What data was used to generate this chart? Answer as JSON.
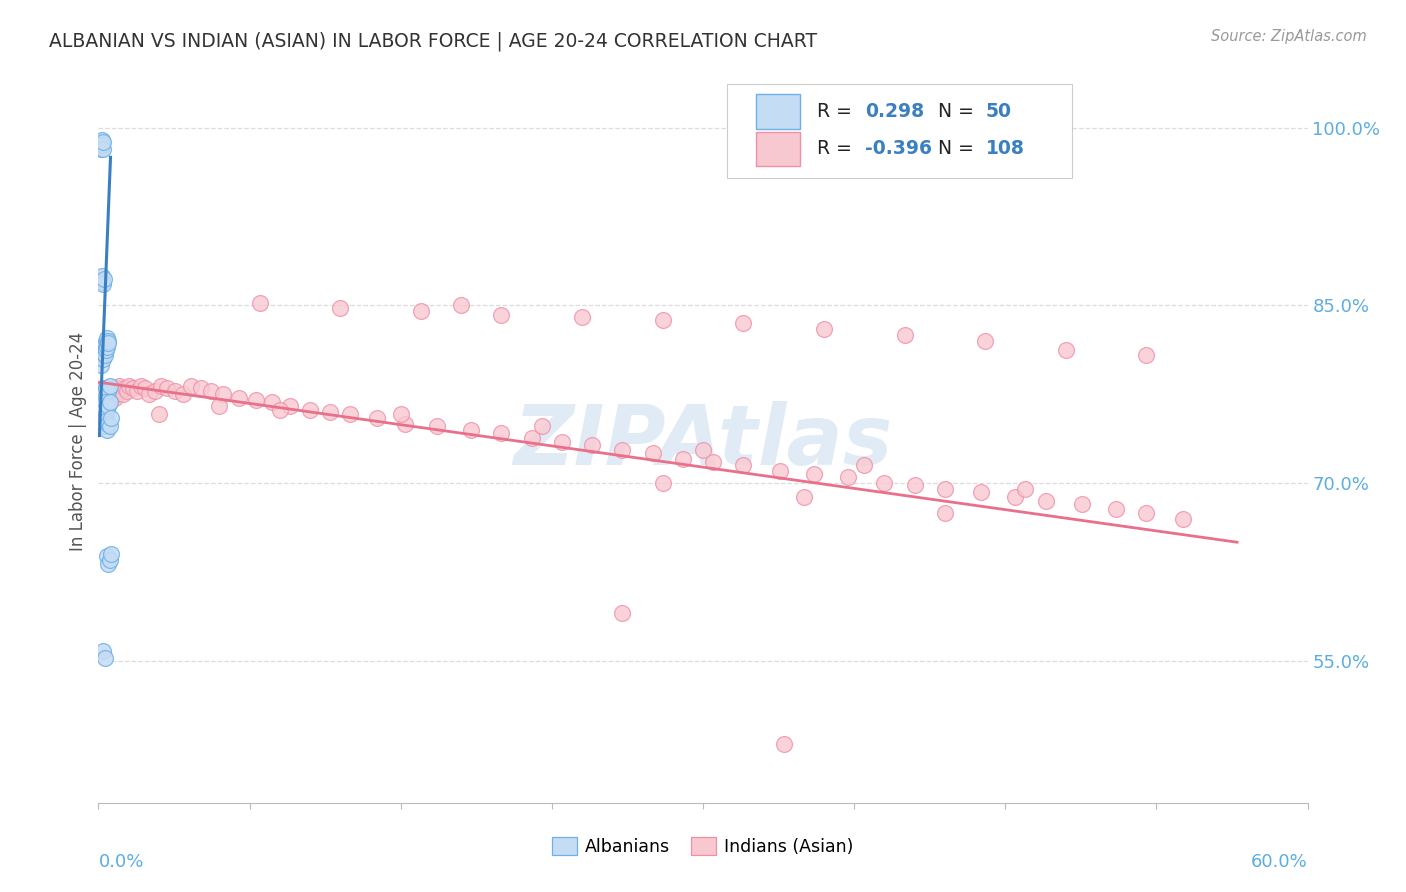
{
  "title": "ALBANIAN VS INDIAN (ASIAN) IN LABOR FORCE | AGE 20-24 CORRELATION CHART",
  "source": "Source: ZipAtlas.com",
  "ylabel": "In Labor Force | Age 20-24",
  "y_ticks": [
    0.55,
    0.7,
    0.85,
    1.0
  ],
  "y_tick_labels": [
    "55.0%",
    "70.0%",
    "85.0%",
    "100.0%"
  ],
  "x_lim": [
    0.0,
    0.6
  ],
  "y_lim": [
    0.43,
    1.04
  ],
  "albanian_R": "0.298",
  "albanian_N": "50",
  "indian_R": "-0.396",
  "indian_N": "108",
  "albanian_face": "#C5DCF5",
  "albanian_edge": "#6EB0E8",
  "indian_face": "#F8C8D0",
  "indian_edge": "#F090A8",
  "trend_blue": "#3A7FC1",
  "trend_pink": "#E8708A",
  "legend_text_color": "#222222",
  "legend_value_color": "#3A7FC1",
  "right_axis_color": "#5DADE2",
  "x_label_color": "#5DADE2",
  "grid_color": "#DDDDDD",
  "title_color": "#333333",
  "watermark_color": "#C8DCF0",
  "alb_x": [
    0.0012,
    0.0014,
    0.0016,
    0.0018,
    0.002,
    0.002,
    0.0022,
    0.0024,
    0.0018,
    0.002,
    0.0025,
    0.0028,
    0.0015,
    0.002,
    0.0025,
    0.003,
    0.0035,
    0.0035,
    0.004,
    0.004,
    0.004,
    0.0045,
    0.0045,
    0.0045,
    0.0048,
    0.005,
    0.0025,
    0.003,
    0.0035,
    0.004,
    0.005,
    0.0055,
    0.003,
    0.0035,
    0.004,
    0.0045,
    0.005,
    0.0055,
    0.0035,
    0.004,
    0.0045,
    0.005,
    0.0055,
    0.006,
    0.0045,
    0.005,
    0.0055,
    0.006,
    0.0025,
    0.0035
  ],
  "alb_y": [
    0.985,
    0.982,
    0.988,
    0.985,
    0.99,
    0.985,
    0.982,
    0.988,
    0.875,
    0.87,
    0.868,
    0.872,
    0.8,
    0.808,
    0.805,
    0.81,
    0.812,
    0.808,
    0.815,
    0.812,
    0.82,
    0.818,
    0.822,
    0.815,
    0.82,
    0.818,
    0.775,
    0.778,
    0.772,
    0.78,
    0.778,
    0.782,
    0.762,
    0.768,
    0.758,
    0.762,
    0.765,
    0.768,
    0.748,
    0.752,
    0.745,
    0.75,
    0.748,
    0.755,
    0.638,
    0.632,
    0.635,
    0.64,
    0.558,
    0.552
  ],
  "ind_x": [
    0.001,
    0.0015,
    0.0018,
    0.002,
    0.0022,
    0.0025,
    0.0025,
    0.0028,
    0.003,
    0.003,
    0.0032,
    0.0035,
    0.0035,
    0.0038,
    0.004,
    0.0042,
    0.0045,
    0.0048,
    0.005,
    0.0052,
    0.0055,
    0.0058,
    0.006,
    0.0065,
    0.007,
    0.0075,
    0.008,
    0.0085,
    0.009,
    0.0095,
    0.01,
    0.011,
    0.012,
    0.013,
    0.014,
    0.015,
    0.017,
    0.019,
    0.021,
    0.023,
    0.025,
    0.028,
    0.031,
    0.034,
    0.038,
    0.042,
    0.046,
    0.051,
    0.056,
    0.062,
    0.07,
    0.078,
    0.086,
    0.095,
    0.105,
    0.115,
    0.125,
    0.138,
    0.152,
    0.168,
    0.185,
    0.2,
    0.215,
    0.23,
    0.245,
    0.26,
    0.275,
    0.29,
    0.305,
    0.32,
    0.338,
    0.355,
    0.372,
    0.39,
    0.405,
    0.42,
    0.438,
    0.455,
    0.47,
    0.488,
    0.505,
    0.52,
    0.538,
    0.08,
    0.12,
    0.16,
    0.2,
    0.24,
    0.28,
    0.32,
    0.36,
    0.4,
    0.44,
    0.48,
    0.52,
    0.03,
    0.06,
    0.09,
    0.15,
    0.22,
    0.3,
    0.38,
    0.46,
    0.18,
    0.28,
    0.35,
    0.42,
    0.26,
    0.34
  ],
  "ind_y": [
    0.77,
    0.765,
    0.768,
    0.762,
    0.775,
    0.77,
    0.758,
    0.772,
    0.768,
    0.78,
    0.765,
    0.77,
    0.758,
    0.775,
    0.772,
    0.768,
    0.778,
    0.772,
    0.775,
    0.77,
    0.768,
    0.775,
    0.772,
    0.778,
    0.775,
    0.78,
    0.772,
    0.778,
    0.775,
    0.78,
    0.782,
    0.778,
    0.775,
    0.78,
    0.778,
    0.782,
    0.78,
    0.778,
    0.782,
    0.78,
    0.775,
    0.778,
    0.782,
    0.78,
    0.778,
    0.775,
    0.782,
    0.78,
    0.778,
    0.775,
    0.772,
    0.77,
    0.768,
    0.765,
    0.762,
    0.76,
    0.758,
    0.755,
    0.75,
    0.748,
    0.745,
    0.742,
    0.738,
    0.735,
    0.732,
    0.728,
    0.725,
    0.72,
    0.718,
    0.715,
    0.71,
    0.708,
    0.705,
    0.7,
    0.698,
    0.695,
    0.692,
    0.688,
    0.685,
    0.682,
    0.678,
    0.675,
    0.67,
    0.852,
    0.848,
    0.845,
    0.842,
    0.84,
    0.838,
    0.835,
    0.83,
    0.825,
    0.82,
    0.812,
    0.808,
    0.758,
    0.765,
    0.762,
    0.758,
    0.748,
    0.728,
    0.715,
    0.695,
    0.85,
    0.7,
    0.688,
    0.675,
    0.59,
    0.48
  ],
  "alb_trend_x": [
    0.0005,
    0.006
  ],
  "alb_trend_y": [
    0.74,
    0.975
  ],
  "ind_trend_x": [
    0.0005,
    0.565
  ],
  "ind_trend_y": [
    0.785,
    0.65
  ]
}
